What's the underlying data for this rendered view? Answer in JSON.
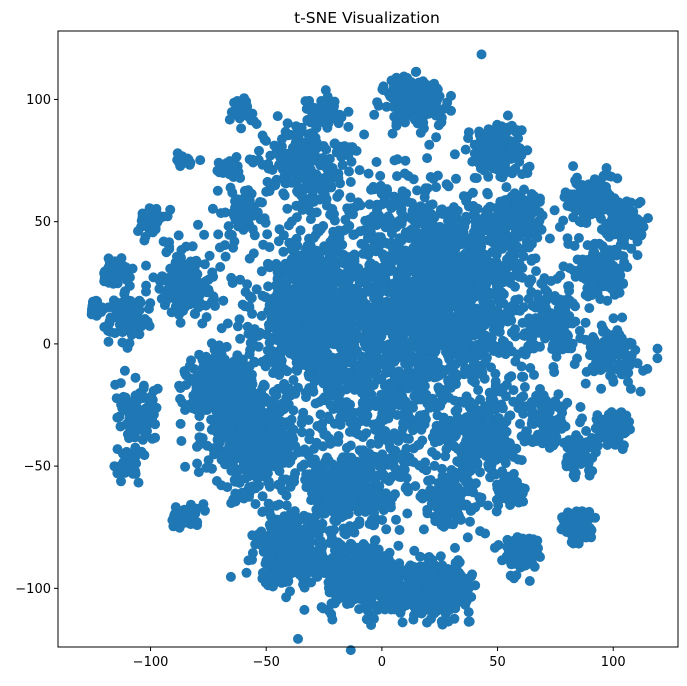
{
  "chart_data": {
    "type": "scatter",
    "title": "t-SNE Visualization",
    "xlabel": "",
    "ylabel": "",
    "xlim": [
      -140,
      128
    ],
    "ylim": [
      -124,
      128
    ],
    "xticks": [
      -100,
      -50,
      0,
      50,
      100
    ],
    "yticks": [
      -100,
      -50,
      0,
      50,
      100
    ],
    "xtick_labels": [
      "−100",
      "−50",
      "0",
      "50",
      "100"
    ],
    "ytick_labels": [
      "−100",
      "−50",
      "0",
      "50",
      "100"
    ],
    "grid": false,
    "legend": "none",
    "marker": "circle",
    "point_color": "#1f77b4",
    "clusters": [
      {
        "cx": 0,
        "cy": 5,
        "rx": 55,
        "ry": 70,
        "n": 1500
      },
      {
        "cx": 30,
        "cy": 20,
        "rx": 35,
        "ry": 40,
        "n": 900
      },
      {
        "cx": -30,
        "cy": 15,
        "rx": 25,
        "ry": 25,
        "n": 550
      },
      {
        "cx": -55,
        "cy": -40,
        "rx": 18,
        "ry": 22,
        "n": 400
      },
      {
        "cx": -70,
        "cy": -20,
        "rx": 14,
        "ry": 16,
        "n": 300
      },
      {
        "cx": -40,
        "cy": -85,
        "rx": 14,
        "ry": 14,
        "n": 260
      },
      {
        "cx": -10,
        "cy": -95,
        "rx": 18,
        "ry": 14,
        "n": 300
      },
      {
        "cx": 15,
        "cy": -100,
        "rx": 14,
        "ry": 10,
        "n": 220
      },
      {
        "cx": 28,
        "cy": -100,
        "rx": 10,
        "ry": 10,
        "n": 180
      },
      {
        "cx": -15,
        "cy": -60,
        "rx": 18,
        "ry": 18,
        "n": 300
      },
      {
        "cx": 15,
        "cy": 100,
        "rx": 12,
        "ry": 10,
        "n": 180
      },
      {
        "cx": -35,
        "cy": 75,
        "rx": 15,
        "ry": 15,
        "n": 200
      },
      {
        "cx": -25,
        "cy": 95,
        "rx": 8,
        "ry": 6,
        "n": 60
      },
      {
        "cx": 50,
        "cy": 80,
        "rx": 12,
        "ry": 12,
        "n": 140
      },
      {
        "cx": 60,
        "cy": -85,
        "rx": 8,
        "ry": 7,
        "n": 90
      },
      {
        "cx": 85,
        "cy": -45,
        "rx": 8,
        "ry": 8,
        "n": 80
      },
      {
        "cx": 100,
        "cy": -35,
        "rx": 8,
        "ry": 7,
        "n": 80
      },
      {
        "cx": 85,
        "cy": -75,
        "rx": 7,
        "ry": 7,
        "n": 60
      },
      {
        "cx": 90,
        "cy": 60,
        "rx": 10,
        "ry": 10,
        "n": 120
      },
      {
        "cx": 105,
        "cy": 50,
        "rx": 10,
        "ry": 10,
        "n": 110
      },
      {
        "cx": 95,
        "cy": 30,
        "rx": 12,
        "ry": 12,
        "n": 120
      },
      {
        "cx": 100,
        "cy": -5,
        "rx": 12,
        "ry": 12,
        "n": 120
      },
      {
        "cx": 70,
        "cy": -30,
        "rx": 10,
        "ry": 12,
        "n": 110
      },
      {
        "cx": 75,
        "cy": 10,
        "rx": 10,
        "ry": 15,
        "n": 120
      },
      {
        "cx": -105,
        "cy": -30,
        "rx": 10,
        "ry": 12,
        "n": 100
      },
      {
        "cx": -110,
        "cy": 10,
        "rx": 10,
        "ry": 10,
        "n": 80
      },
      {
        "cx": -115,
        "cy": 30,
        "rx": 6,
        "ry": 7,
        "n": 50
      },
      {
        "cx": -100,
        "cy": 50,
        "rx": 6,
        "ry": 5,
        "n": 40
      },
      {
        "cx": -125,
        "cy": 15,
        "rx": 4,
        "ry": 4,
        "n": 30
      },
      {
        "cx": -110,
        "cy": -50,
        "rx": 6,
        "ry": 6,
        "n": 40
      },
      {
        "cx": -85,
        "cy": 75,
        "rx": 4,
        "ry": 3,
        "n": 20
      },
      {
        "cx": -60,
        "cy": 95,
        "rx": 5,
        "ry": 6,
        "n": 30
      },
      {
        "cx": -65,
        "cy": 72,
        "rx": 6,
        "ry": 4,
        "n": 25
      },
      {
        "cx": -85,
        "cy": -70,
        "rx": 6,
        "ry": 6,
        "n": 40
      },
      {
        "cx": -60,
        "cy": 55,
        "rx": 8,
        "ry": 8,
        "n": 60
      },
      {
        "cx": -85,
        "cy": 25,
        "rx": 12,
        "ry": 15,
        "n": 150
      },
      {
        "cx": 45,
        "cy": -40,
        "rx": 15,
        "ry": 15,
        "n": 200
      },
      {
        "cx": 30,
        "cy": -65,
        "rx": 12,
        "ry": 10,
        "n": 120
      },
      {
        "cx": 55,
        "cy": -60,
        "rx": 8,
        "ry": 6,
        "n": 60
      },
      {
        "cx": 60,
        "cy": 50,
        "rx": 12,
        "ry": 12,
        "n": 140
      }
    ]
  }
}
